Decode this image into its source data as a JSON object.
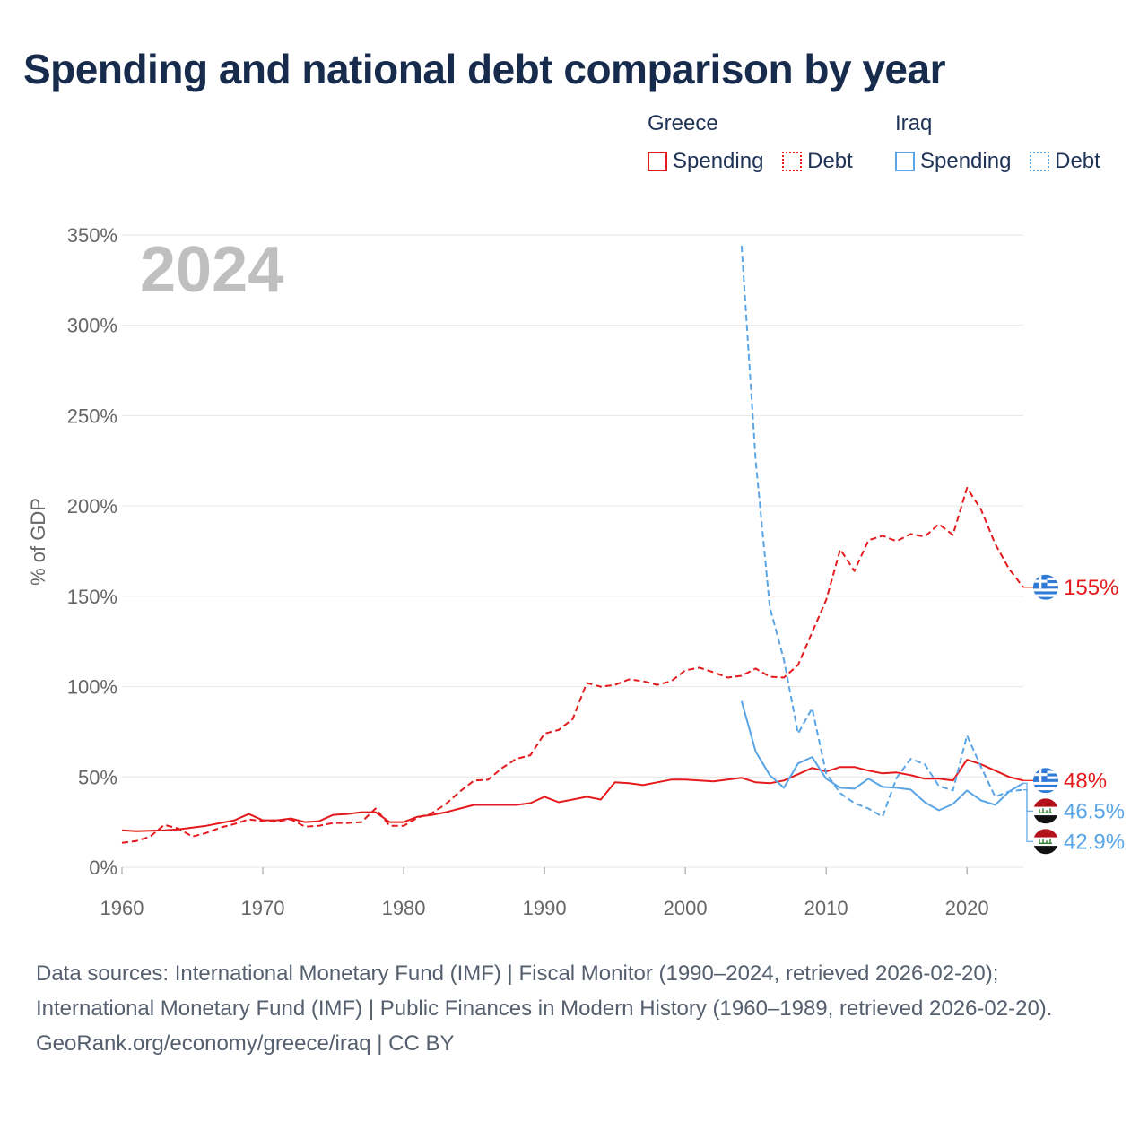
{
  "title": "Spending and national debt comparison by year",
  "legend": {
    "groups": [
      {
        "name": "Greece",
        "items": [
          {
            "label": "Spending",
            "style": "solid"
          },
          {
            "label": "Debt",
            "style": "dotted"
          }
        ],
        "color": "#e41a1c"
      },
      {
        "name": "Iraq",
        "items": [
          {
            "label": "Spending",
            "style": "solid"
          },
          {
            "label": "Debt",
            "style": "dotted"
          }
        ],
        "color": "#5aa5e6"
      }
    ]
  },
  "colors": {
    "greece": "#e41a1c",
    "iraq": "#5aa5e6",
    "grid": "#e6e6e6",
    "axis_text": "#666666",
    "year_watermark": "#bfbfbf"
  },
  "chart_data": {
    "type": "line",
    "year_label": "2024",
    "ylabel": "% of GDP",
    "xlim": [
      1960,
      2024
    ],
    "ylim": [
      0,
      350
    ],
    "x_ticks": [
      1960,
      1970,
      1980,
      1990,
      2000,
      2010,
      2020
    ],
    "y_ticks": [
      0,
      50,
      100,
      150,
      200,
      250,
      300,
      350
    ],
    "y_tick_labels": [
      "0%",
      "50%",
      "100%",
      "150%",
      "200%",
      "250%",
      "300%",
      "350%"
    ],
    "series": [
      {
        "name": "Greece Spending",
        "country": "greece",
        "dash": "solid",
        "x": [
          1960,
          1961,
          1962,
          1963,
          1964,
          1965,
          1966,
          1967,
          1968,
          1969,
          1970,
          1971,
          1972,
          1973,
          1974,
          1975,
          1976,
          1977,
          1978,
          1979,
          1980,
          1981,
          1982,
          1983,
          1984,
          1985,
          1986,
          1987,
          1988,
          1989,
          1990,
          1991,
          1992,
          1993,
          1994,
          1995,
          1996,
          1997,
          1998,
          1999,
          2000,
          2001,
          2002,
          2003,
          2004,
          2005,
          2006,
          2007,
          2008,
          2009,
          2010,
          2011,
          2012,
          2013,
          2014,
          2015,
          2016,
          2017,
          2018,
          2019,
          2020,
          2021,
          2022,
          2023,
          2024
        ],
        "values": [
          20.5,
          20,
          20.2,
          20.5,
          21,
          22,
          23,
          24.5,
          26,
          29.5,
          26,
          26,
          27,
          25,
          25.5,
          29,
          29.5,
          30.5,
          30.5,
          25,
          25,
          28,
          29,
          30.5,
          32.5,
          34.5,
          34.5,
          34.5,
          34.5,
          35.5,
          39,
          36,
          37.5,
          39,
          37.5,
          47,
          46.5,
          45.5,
          47,
          48.5,
          48.5,
          48,
          47.5,
          48.5,
          49.5,
          47,
          46.5,
          48,
          51.5,
          55,
          53,
          55.5,
          55.5,
          53.5,
          52,
          52.5,
          51,
          49,
          49,
          48,
          59.5,
          57,
          53.5,
          50,
          48
        ]
      },
      {
        "name": "Greece Debt",
        "country": "greece",
        "dash": "dashed",
        "x": [
          1960,
          1961,
          1962,
          1963,
          1964,
          1965,
          1966,
          1967,
          1968,
          1969,
          1970,
          1971,
          1972,
          1973,
          1974,
          1975,
          1976,
          1977,
          1978,
          1979,
          1980,
          1981,
          1982,
          1983,
          1984,
          1985,
          1986,
          1987,
          1988,
          1989,
          1990,
          1991,
          1992,
          1993,
          1994,
          1995,
          1996,
          1997,
          1998,
          1999,
          2000,
          2001,
          2002,
          2003,
          2004,
          2005,
          2006,
          2007,
          2008,
          2009,
          2010,
          2011,
          2012,
          2013,
          2014,
          2015,
          2016,
          2017,
          2018,
          2019,
          2020,
          2021,
          2022,
          2023,
          2024
        ],
        "values": [
          13.5,
          14.5,
          17,
          23.5,
          21.5,
          17,
          19,
          22,
          24,
          26.5,
          25.5,
          25.5,
          26.5,
          22.5,
          23,
          24.5,
          24.5,
          25,
          32.5,
          23,
          23,
          27.5,
          30,
          35,
          42,
          48,
          48.5,
          55,
          60,
          62,
          74,
          76,
          82,
          102,
          100,
          101,
          104,
          103,
          101,
          103,
          109,
          110.5,
          108,
          105,
          106,
          110,
          105.5,
          105,
          112,
          130,
          148,
          176,
          164,
          181,
          183.5,
          180.5,
          184.5,
          183,
          190,
          184,
          210,
          198,
          179,
          165,
          155
        ]
      },
      {
        "name": "Iraq Spending",
        "country": "iraq",
        "dash": "solid",
        "x": [
          2004,
          2005,
          2006,
          2007,
          2008,
          2009,
          2010,
          2011,
          2012,
          2013,
          2014,
          2015,
          2016,
          2017,
          2018,
          2019,
          2020,
          2021,
          2022,
          2023,
          2024
        ],
        "values": [
          92,
          64,
          51,
          44,
          57.5,
          61,
          49,
          44,
          43.5,
          49,
          44.5,
          44,
          43,
          36,
          31.5,
          35,
          42.5,
          37,
          34.5,
          42,
          46.5
        ]
      },
      {
        "name": "Iraq Debt",
        "country": "iraq",
        "dash": "dashed",
        "x": [
          2004,
          2005,
          2006,
          2007,
          2008,
          2009,
          2010,
          2011,
          2012,
          2013,
          2014,
          2015,
          2016,
          2017,
          2018,
          2019,
          2020,
          2021,
          2022,
          2023,
          2024
        ],
        "values": [
          344,
          225,
          144,
          115,
          74,
          88,
          52,
          41,
          35.5,
          32.5,
          28,
          49.5,
          60,
          57,
          45,
          42.5,
          73,
          55.5,
          39,
          42,
          42.9
        ]
      }
    ],
    "end_labels": [
      {
        "country": "greece",
        "text": "155%"
      },
      {
        "country": "greece",
        "text": "48%"
      },
      {
        "country": "iraq",
        "text": "46.5%"
      },
      {
        "country": "iraq",
        "text": "42.9%"
      }
    ]
  },
  "footer": {
    "sources": "Data sources: International Monetary Fund (IMF) | Fiscal Monitor (1990–2024, retrieved 2026-02-20); International Monetary Fund (IMF) | Public Finances in Modern History (1960–1989, retrieved 2026-02-20).",
    "credit": "GeoRank.org/economy/greece/iraq | CC BY"
  }
}
